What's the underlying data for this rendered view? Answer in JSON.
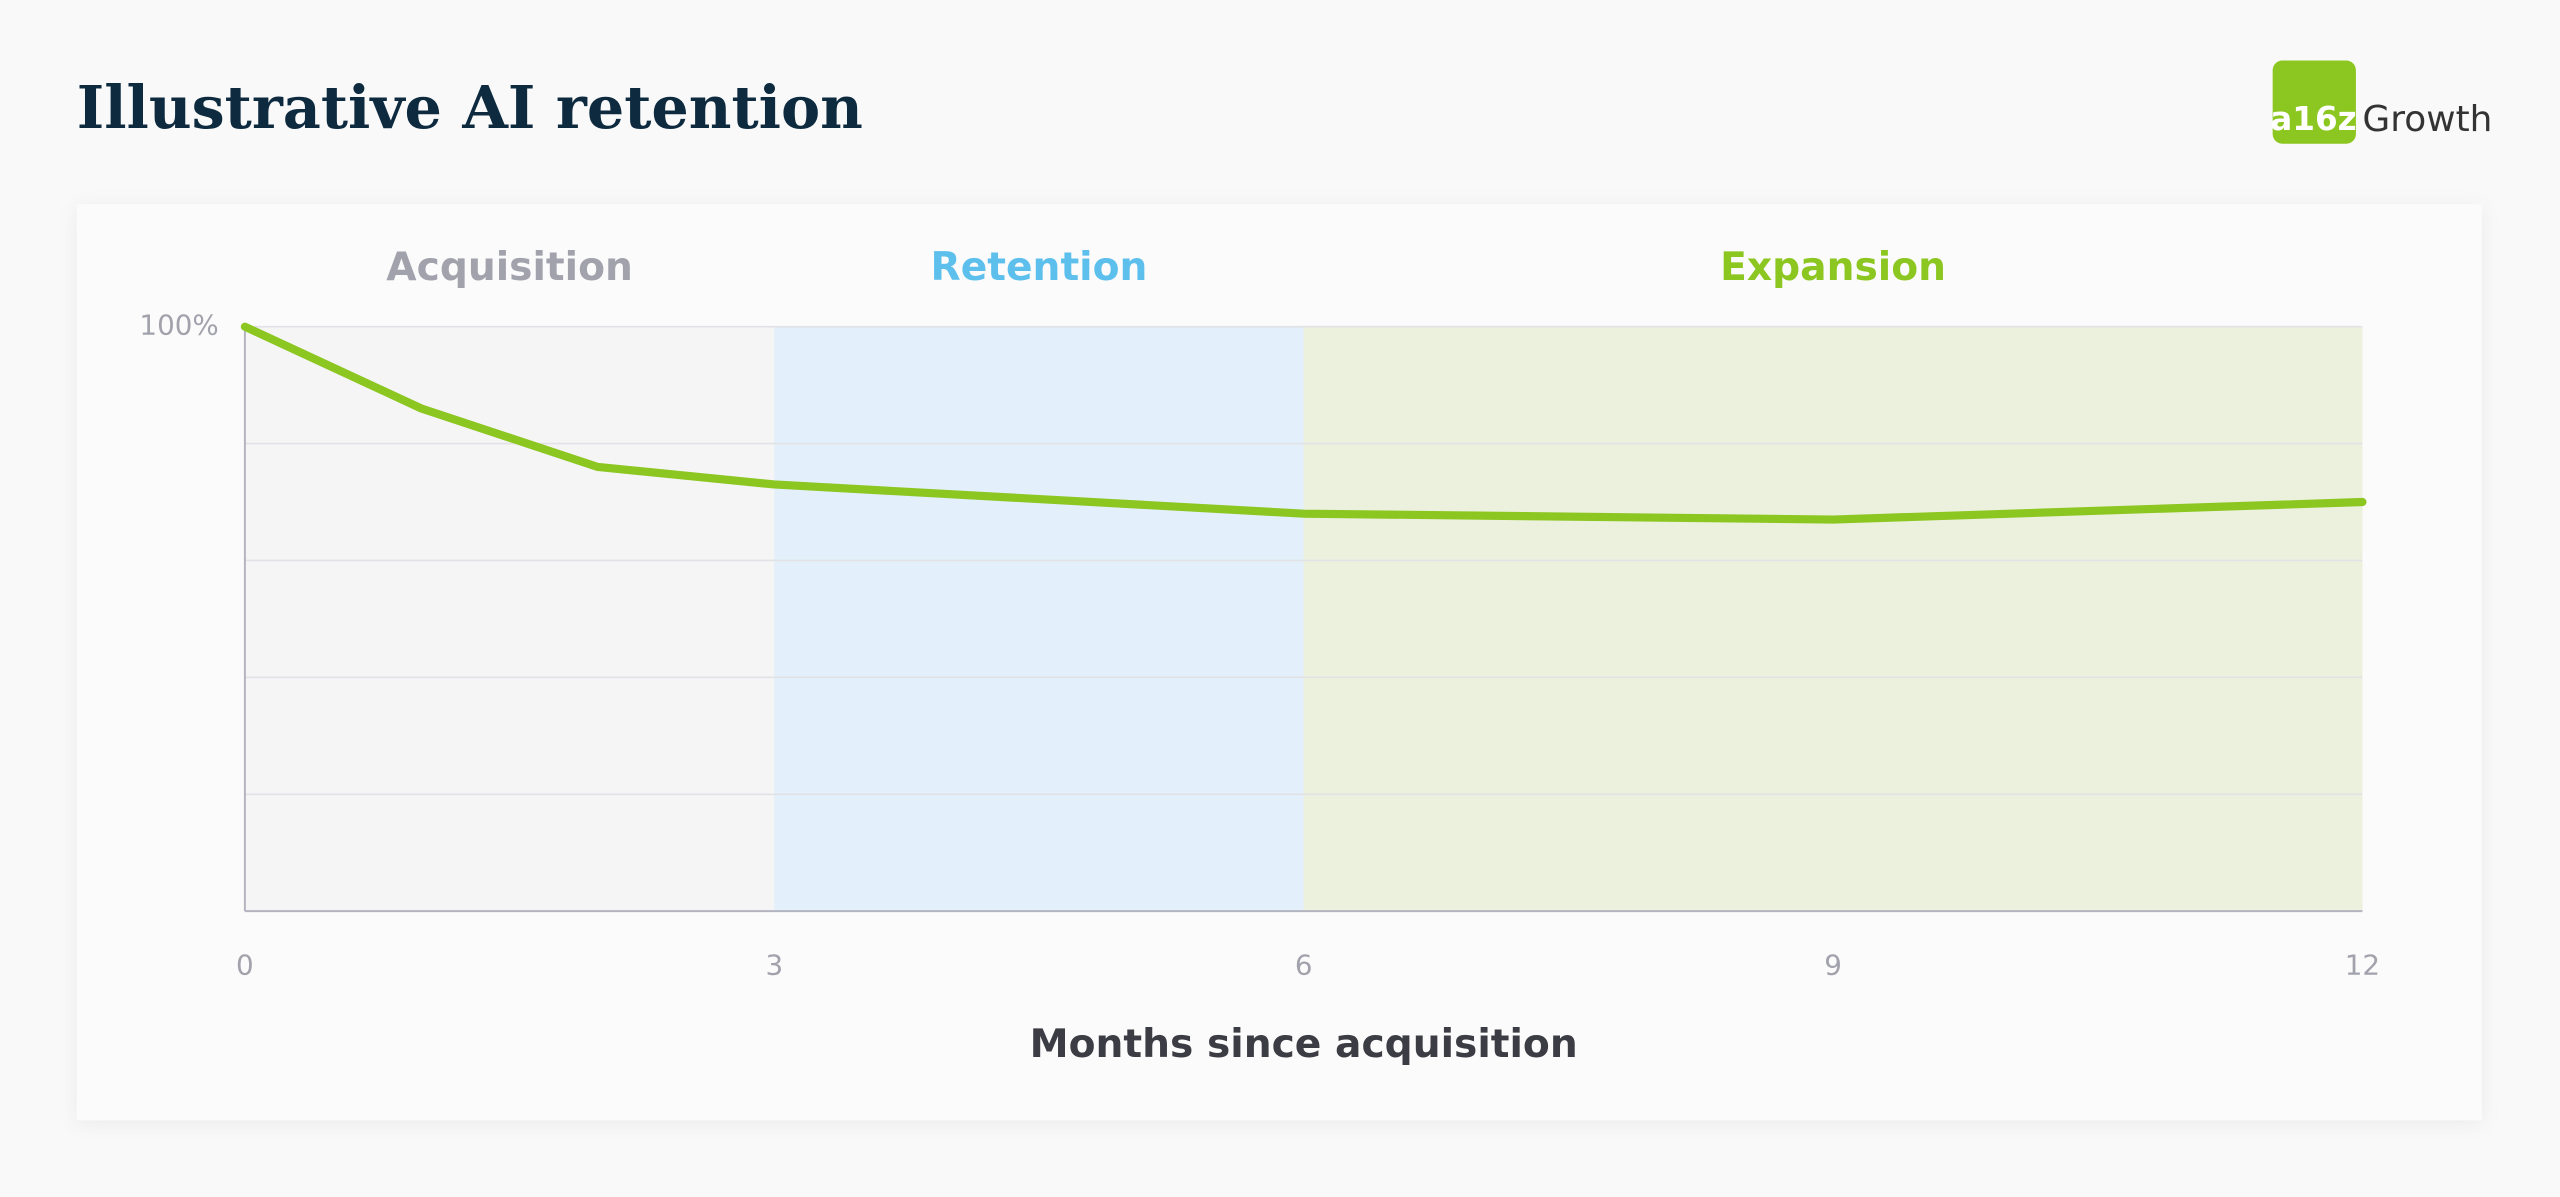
{
  "title": "Illustrative AI retention",
  "logo": {
    "mark": "a16z",
    "text": "Growth"
  },
  "chart_data": {
    "type": "line",
    "x_label": "Months since acquisition",
    "x": [
      0,
      1,
      2,
      3,
      6,
      9,
      12
    ],
    "series": [
      {
        "name": "Retention",
        "color": "#8cc620",
        "values": [
          100,
          86,
          76,
          73,
          68,
          67,
          70
        ]
      }
    ],
    "xlim": [
      0,
      12
    ],
    "xticks": [
      0,
      3,
      6,
      9,
      12
    ],
    "ylim": [
      0,
      100
    ],
    "yticks": [
      {
        "value": 100,
        "label": "100%"
      }
    ],
    "grid_lines": [
      20,
      40,
      60,
      80
    ],
    "bands": [
      {
        "label": "Acquisition",
        "from": 0,
        "to": 3,
        "color": "#f5f5f6",
        "label_color": "#a2a2ac"
      },
      {
        "label": "Retention",
        "from": 3,
        "to": 6,
        "color": "#e3effa",
        "label_color": "#5cbfec"
      },
      {
        "label": "Expansion",
        "from": 6,
        "to": 12,
        "color": "#ebf1dc",
        "label_color": "#8cc620"
      }
    ]
  }
}
